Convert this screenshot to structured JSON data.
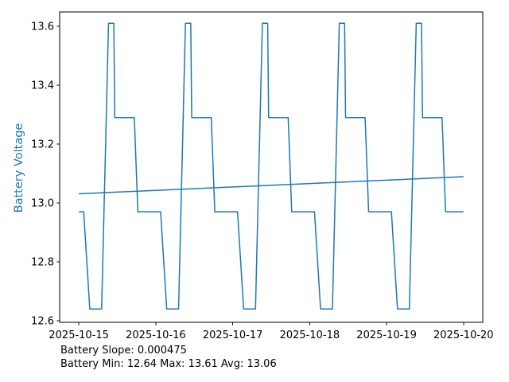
{
  "chart_data": {
    "type": "line",
    "title": "",
    "xlabel": "",
    "ylabel": "Battery Voltage",
    "ylabel_color": "#1f77b4",
    "axis_color": "#000000",
    "background_color": "#ffffff",
    "grid": false,
    "legend": false,
    "x_tick_labels": [
      "2025-10-15",
      "2025-10-16",
      "2025-10-17",
      "2025-10-18",
      "2025-10-19",
      "2025-10-20"
    ],
    "x_ticks_days": [
      0,
      1,
      2,
      3,
      4,
      5
    ],
    "y_tick_labels": [
      "12.6",
      "12.8",
      "13.0",
      "13.2",
      "13.4",
      "13.6"
    ],
    "y_tick_values": [
      12.6,
      12.8,
      13.0,
      13.2,
      13.4,
      13.6
    ],
    "xlim_days": [
      -0.25,
      5.25
    ],
    "ylim": [
      12.5946,
      13.6486
    ],
    "annotations": {
      "line1": "Battery Slope: 0.000475",
      "line2": "Battery Min: 12.64 Max: 13.61 Avg: 13.06"
    },
    "stats": {
      "slope": 0.000475,
      "min": 12.64,
      "max": 13.61,
      "avg": 13.06
    },
    "series": [
      {
        "name": "battery-voltage",
        "color": "#1f77b4",
        "linewidth": 1.5,
        "x_days": [
          0.0,
          0.0625,
          0.1417,
          0.2958,
          0.3854,
          0.4542,
          0.4667,
          0.7208,
          0.7667,
          1.0,
          1.0625,
          1.1417,
          1.2958,
          1.3854,
          1.4542,
          1.4667,
          1.7208,
          1.7667,
          2.0,
          2.0625,
          2.1417,
          2.2958,
          2.3854,
          2.4542,
          2.4667,
          2.7208,
          2.7667,
          3.0,
          3.0625,
          3.1417,
          3.2958,
          3.3854,
          3.4542,
          3.4667,
          3.7208,
          3.7667,
          4.0,
          4.0625,
          4.1417,
          4.2958,
          4.3854,
          4.4542,
          4.4667,
          4.7208,
          4.7667,
          5.0
        ],
        "values": [
          12.97,
          12.97,
          12.64,
          12.64,
          13.61,
          13.61,
          13.29,
          13.29,
          12.97,
          12.97,
          12.97,
          12.64,
          12.64,
          13.61,
          13.61,
          13.29,
          13.29,
          12.97,
          12.97,
          12.97,
          12.64,
          12.64,
          13.61,
          13.61,
          13.29,
          13.29,
          12.97,
          12.97,
          12.97,
          12.64,
          12.64,
          13.61,
          13.61,
          13.29,
          13.29,
          12.97,
          12.97,
          12.97,
          12.64,
          12.64,
          13.61,
          13.61,
          13.29,
          13.29,
          12.97,
          12.97
        ]
      },
      {
        "name": "trend-line",
        "color": "#1f77b4",
        "linewidth": 1.5,
        "x_days": [
          0.0,
          5.0
        ],
        "values": [
          13.031,
          13.089
        ]
      }
    ]
  }
}
